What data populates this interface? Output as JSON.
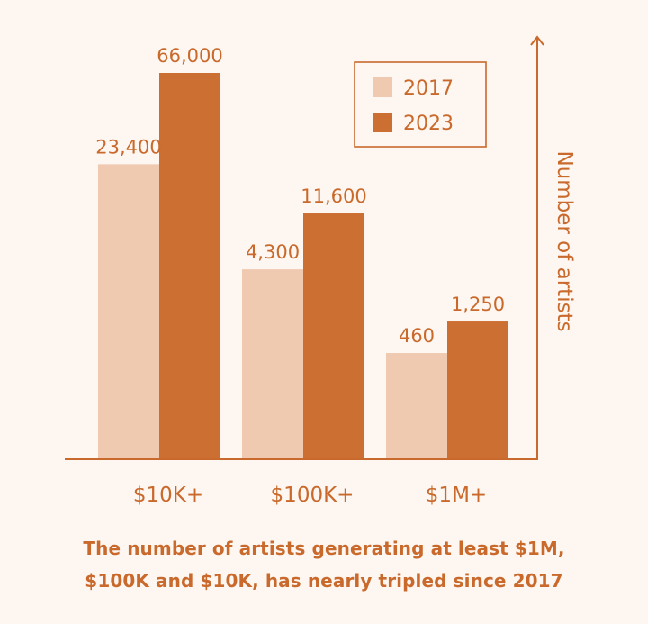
{
  "chart_data": {
    "type": "bar",
    "categories": [
      "$10K+",
      "$100K+",
      "$1M+"
    ],
    "series": [
      {
        "name": "2017",
        "values": [
          23400,
          4300,
          460
        ],
        "labels": [
          "23,400",
          "4,300",
          "460"
        ],
        "color": "#f0c9b1"
      },
      {
        "name": "2023",
        "values": [
          66000,
          11600,
          1250
        ],
        "labels": [
          "66,000",
          "11,600",
          "1,250"
        ],
        "color": "#cc6f33"
      }
    ],
    "ylabel": "Number of artists",
    "xlabel": "",
    "axis_scale": "non-linear (bars not drawn proportionally)",
    "legend_position": "top-right",
    "grid": false
  },
  "caption": {
    "line1": "The number of artists generating at least $1M,",
    "line2": "$100K and $10K, has nearly tripled since 2017"
  },
  "colors": {
    "background": "#fdf6f1",
    "accent": "#c96a2c",
    "series_2017": "#f0c9b1",
    "series_2023": "#cc6f33"
  }
}
